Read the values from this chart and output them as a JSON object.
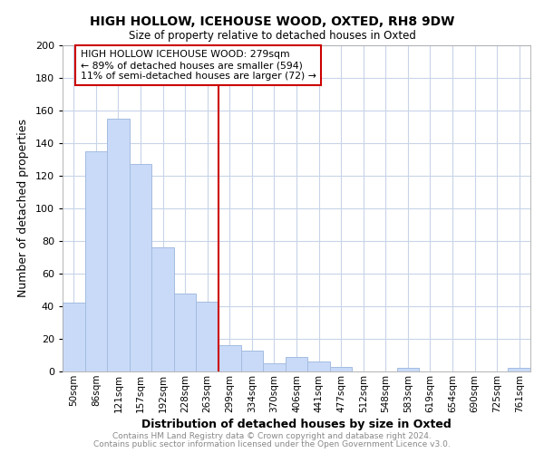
{
  "title1": "HIGH HOLLOW, ICEHOUSE WOOD, OXTED, RH8 9DW",
  "title2": "Size of property relative to detached houses in Oxted",
  "xlabel": "Distribution of detached houses by size in Oxted",
  "ylabel": "Number of detached properties",
  "bar_labels": [
    "50sqm",
    "86sqm",
    "121sqm",
    "157sqm",
    "192sqm",
    "228sqm",
    "263sqm",
    "299sqm",
    "334sqm",
    "370sqm",
    "406sqm",
    "441sqm",
    "477sqm",
    "512sqm",
    "548sqm",
    "583sqm",
    "619sqm",
    "654sqm",
    "690sqm",
    "725sqm",
    "761sqm"
  ],
  "bar_heights": [
    42,
    135,
    155,
    127,
    76,
    48,
    43,
    16,
    13,
    5,
    9,
    6,
    3,
    0,
    0,
    2,
    0,
    0,
    0,
    0,
    2
  ],
  "bar_color": "#c9daf8",
  "bar_edge_color": "#a4bce0",
  "vline_color": "#cc0000",
  "annotation_text": "HIGH HOLLOW ICEHOUSE WOOD: 279sqm\n← 89% of detached houses are smaller (594)\n11% of semi-detached houses are larger (72) →",
  "annotation_box_color": "#ffffff",
  "annotation_box_edge": "#cc0000",
  "ylim": [
    0,
    200
  ],
  "yticks": [
    0,
    20,
    40,
    60,
    80,
    100,
    120,
    140,
    160,
    180,
    200
  ],
  "footer1": "Contains HM Land Registry data © Crown copyright and database right 2024.",
  "footer2": "Contains public sector information licensed under the Open Government Licence v3.0.",
  "background_color": "#ffffff",
  "grid_color": "#c8d4e8",
  "footer_color": "#888888"
}
